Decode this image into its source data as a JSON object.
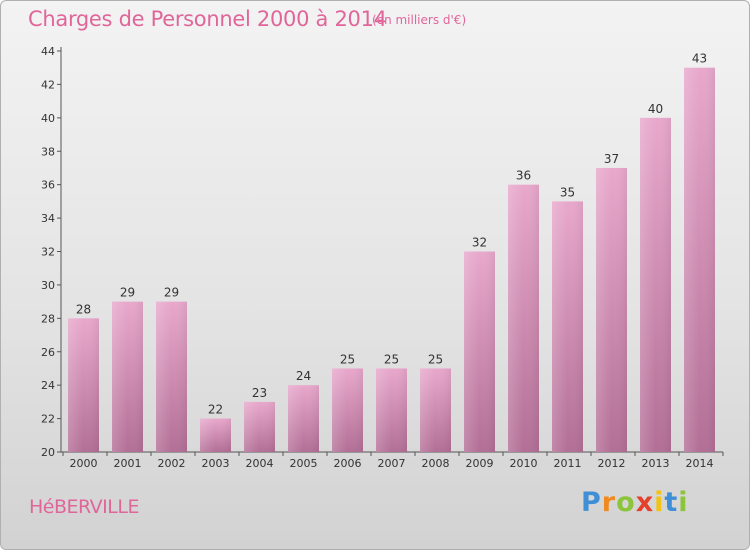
{
  "header": {
    "title": "Charges de Personnel 2000 à 2014",
    "subtitle": "(en milliers d'€)"
  },
  "footer": {
    "commune": "HéBERVILLE",
    "logo": [
      "P",
      "r",
      "o",
      "x",
      "i",
      "t",
      "i"
    ]
  },
  "colors": {
    "bar_top": "#e8a8cc",
    "bar_bottom": "#b36f96",
    "text_accent": "#e0669a"
  },
  "chart_data": {
    "type": "bar",
    "title": "Charges de Personnel 2000 à 2014",
    "subtitle": "(en milliers d'€)",
    "categories": [
      "2000",
      "2001",
      "2002",
      "2003",
      "2004",
      "2005",
      "2006",
      "2007",
      "2008",
      "2009",
      "2010",
      "2011",
      "2012",
      "2013",
      "2014"
    ],
    "values": [
      28,
      29,
      29,
      22,
      23,
      24,
      25,
      25,
      25,
      32,
      36,
      35,
      37,
      40,
      43
    ],
    "ylim": [
      20,
      44
    ],
    "yticks": [
      20,
      22,
      24,
      26,
      28,
      30,
      32,
      34,
      36,
      38,
      40,
      42,
      44
    ],
    "grid": false,
    "data_labels": true
  }
}
